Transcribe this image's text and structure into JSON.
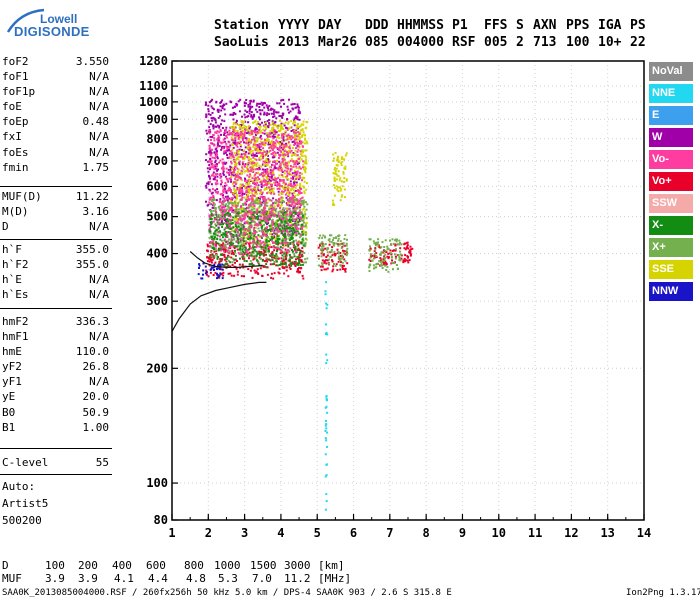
{
  "logo": {
    "top": "Lowell",
    "bottom": "DIGISONDE"
  },
  "header": {
    "row1": [
      "Station",
      "YYYY",
      "DAY",
      "DDD",
      "HHMMSS",
      "P1",
      "FFS",
      "S",
      "AXN",
      "PPS",
      "IGA",
      "PS"
    ],
    "row2": [
      "SaoLuis",
      "2013",
      "Mar26",
      "085",
      "004000",
      "RSF",
      "005",
      "2",
      "713",
      "100",
      "10+",
      "22"
    ]
  },
  "params": {
    "group1": [
      {
        "name": "foF2",
        "value": "3.550"
      },
      {
        "name": "foF1",
        "value": "N/A"
      },
      {
        "name": "foF1p",
        "value": "N/A"
      },
      {
        "name": "foE",
        "value": "N/A"
      },
      {
        "name": "foEp",
        "value": "0.48"
      },
      {
        "name": "fxI",
        "value": "N/A"
      },
      {
        "name": "foEs",
        "value": "N/A"
      },
      {
        "name": "fmin",
        "value": "1.75"
      }
    ],
    "group2": [
      {
        "name": "MUF(D)",
        "value": "11.22"
      },
      {
        "name": "M(D)",
        "value": "3.16"
      },
      {
        "name": "D",
        "value": "N/A"
      }
    ],
    "group3": [
      {
        "name": "h`F",
        "value": "355.0"
      },
      {
        "name": "h`F2",
        "value": "355.0"
      },
      {
        "name": "h`E",
        "value": "N/A"
      },
      {
        "name": "h`Es",
        "value": "N/A"
      }
    ],
    "group4": [
      {
        "name": "hmF2",
        "value": "336.3"
      },
      {
        "name": "hmF1",
        "value": "N/A"
      },
      {
        "name": "hmE",
        "value": "110.0"
      },
      {
        "name": "yF2",
        "value": "26.8"
      },
      {
        "name": "yF1",
        "value": "N/A"
      },
      {
        "name": "yE",
        "value": "20.0"
      },
      {
        "name": "B0",
        "value": "50.9"
      },
      {
        "name": "B1",
        "value": "1.00"
      }
    ],
    "clevel": {
      "name": "C-level",
      "value": "55"
    },
    "auto": [
      "Auto:",
      "Artist5",
      "500200"
    ]
  },
  "legend": [
    {
      "label": "NoVal",
      "color": "#8c8c8c"
    },
    {
      "label": "NNE",
      "color": "#22d8f0"
    },
    {
      "label": "E",
      "color": "#3ca0ee"
    },
    {
      "label": "W",
      "color": "#a000a8"
    },
    {
      "label": "Vo-",
      "color": "#ff3ca0"
    },
    {
      "label": "Vo+",
      "color": "#e8002a"
    },
    {
      "label": "SSW",
      "color": "#f4aaa8"
    },
    {
      "label": "X-",
      "color": "#128c12"
    },
    {
      "label": "X+",
      "color": "#74b04e"
    },
    {
      "label": "SSE",
      "color": "#d6d400"
    },
    {
      "label": "NNW",
      "color": "#1a14c8"
    }
  ],
  "chart_data": {
    "type": "scatter",
    "title": "",
    "xlabel": "",
    "ylabel": "",
    "xlim": [
      1,
      14
    ],
    "ylim": [
      80,
      1280
    ],
    "y_scale": "log",
    "x_ticks": [
      "1",
      "2",
      "3",
      "4",
      "5",
      "6",
      "7",
      "8",
      "9",
      "10",
      "11",
      "12",
      "13",
      "14"
    ],
    "y_ticks": [
      "1280",
      "1100",
      "1000",
      "900",
      "800",
      "700",
      "600",
      "500",
      "400",
      "300",
      "200",
      "100",
      "80"
    ],
    "grid": true,
    "legend_position": "right",
    "series": [
      {
        "name": "Vo+",
        "color": "#e8002a",
        "clusters": [
          {
            "x": [
              1.9,
              4.6
            ],
            "y": [
              345,
              430
            ]
          },
          {
            "x": [
              5.0,
              5.8
            ],
            "y": [
              360,
              430
            ]
          },
          {
            "x": [
              6.4,
              7.6
            ],
            "y": [
              370,
              430
            ]
          }
        ]
      },
      {
        "name": "W",
        "color": "#a000a8",
        "clusters": [
          {
            "x": [
              1.9,
              4.5
            ],
            "y": [
              440,
              1020
            ]
          }
        ]
      },
      {
        "name": "SSE",
        "color": "#d6d400",
        "clusters": [
          {
            "x": [
              2.6,
              4.7
            ],
            "y": [
              420,
              900
            ]
          },
          {
            "x": [
              5.4,
              5.8
            ],
            "y": [
              530,
              740
            ]
          }
        ]
      },
      {
        "name": "X+",
        "color": "#74b04e",
        "clusters": [
          {
            "x": [
              2.0,
              4.7
            ],
            "y": [
              380,
              560
            ]
          },
          {
            "x": [
              5.0,
              5.8
            ],
            "y": [
              370,
              450
            ]
          },
          {
            "x": [
              6.4,
              7.3
            ],
            "y": [
              360,
              440
            ]
          }
        ]
      },
      {
        "name": "X-",
        "color": "#128c12",
        "clusters": [
          {
            "x": [
              2.0,
              4.6
            ],
            "y": [
              370,
              520
            ]
          }
        ]
      },
      {
        "name": "Vo-",
        "color": "#ff3ca0",
        "clusters": [
          {
            "x": [
              2.0,
              4.6
            ],
            "y": [
              400,
              850
            ]
          }
        ]
      },
      {
        "name": "NNW",
        "color": "#1a14c8",
        "clusters": [
          {
            "x": [
              1.7,
              2.4
            ],
            "y": [
              345,
              380
            ]
          }
        ]
      },
      {
        "name": "NNE",
        "color": "#22d8f0",
        "clusters": [
          {
            "x": [
              5.2,
              5.25
            ],
            "y": [
              82,
              340
            ]
          }
        ]
      }
    ],
    "trace_curves": [
      {
        "x": [
          1.0,
          1.2,
          1.5,
          1.8,
          2.2,
          2.6,
          3.0,
          3.4,
          3.6
        ],
        "y": [
          250,
          270,
          295,
          310,
          320,
          326,
          332,
          336,
          336
        ]
      },
      {
        "x": [
          1.5,
          1.7,
          1.9,
          2.2,
          2.5,
          2.8,
          3.1,
          3.5
        ],
        "y": [
          405,
          390,
          378,
          370,
          368,
          368,
          370,
          372
        ]
      }
    ]
  },
  "footer": {
    "d_label": "D",
    "d_values": [
      "100",
      "200",
      "400",
      "600",
      "800",
      "1000",
      "1500",
      "3000",
      "[km]"
    ],
    "muf_label": "MUF",
    "muf_values": [
      "3.9",
      "3.9",
      "4.1",
      "4.4",
      "4.8",
      "5.3",
      "7.0",
      "11.2",
      "[MHz]"
    ],
    "file_line": "SAA0K_2013085004000.RSF / 260fx256h 50 kHz 5.0 km / DPS-4 SAA0K 903 / 2.6 S 315.8 E",
    "version": "Ion2Png 1.3.17"
  }
}
